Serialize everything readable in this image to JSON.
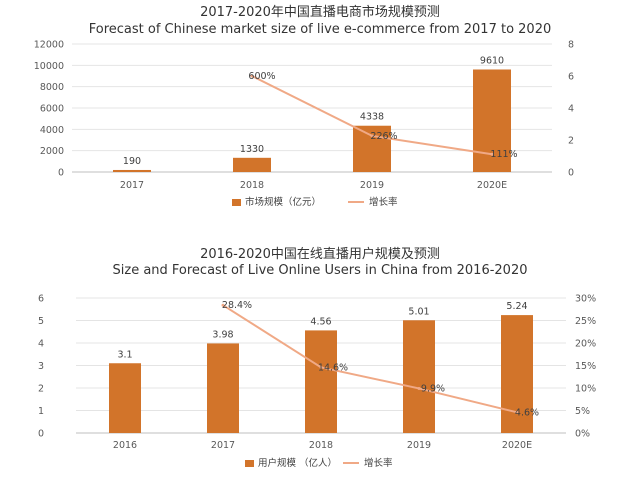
{
  "chart_data": [
    {
      "type": "bar",
      "title": "2017-2020年中国直播电商市场规模预测",
      "subtitle": "Forecast of Chinese market size of live e-commerce from 2017 to 2020",
      "categories": [
        "2017",
        "2018",
        "2019",
        "2020E"
      ],
      "left_axis": {
        "ylim": [
          0,
          12000
        ],
        "ticks": [
          "0",
          "2000",
          "4000",
          "6000",
          "8000",
          "10000",
          "12000"
        ]
      },
      "right_axis": {
        "ylim": [
          0,
          8
        ],
        "ticks": [
          "0",
          "2",
          "4",
          "6",
          "8"
        ]
      },
      "series": [
        {
          "name": "市场规模（亿元）",
          "kind": "bar",
          "axis": "left",
          "color": "#d2742a",
          "values": [
            190,
            1330,
            4338,
            9610
          ],
          "labels": [
            "190",
            "1330",
            "4338",
            "9610"
          ]
        },
        {
          "name": "增长率",
          "kind": "line",
          "axis": "right",
          "color": "#f0a986",
          "x": [
            "2018",
            "2019",
            "2020E"
          ],
          "values": [
            6.0,
            2.26,
            1.11
          ],
          "labels": [
            "600%",
            "226%",
            "111%"
          ]
        }
      ],
      "grid": true,
      "legend": "bottom"
    },
    {
      "type": "bar",
      "title": "2016-2020中国在线直播用户规模及预测",
      "subtitle": "Size and Forecast of Live Online Users in China from 2016-2020",
      "categories": [
        "2016",
        "2017",
        "2018",
        "2019",
        "2020E"
      ],
      "left_axis": {
        "ylim": [
          0,
          6
        ],
        "ticks": [
          "0",
          "1",
          "2",
          "3",
          "4",
          "5",
          "6"
        ]
      },
      "right_axis": {
        "ylim": [
          0,
          30
        ],
        "ticks": [
          "0%",
          "5%",
          "10%",
          "15%",
          "20%",
          "25%",
          "30%"
        ]
      },
      "series": [
        {
          "name": "用户规模 （亿人）",
          "kind": "bar",
          "axis": "left",
          "color": "#d2742a",
          "values": [
            3.1,
            3.98,
            4.56,
            5.01,
            5.24
          ],
          "labels": [
            "3.1",
            "3.98",
            "4.56",
            "5.01",
            "5.24"
          ]
        },
        {
          "name": "增长率",
          "kind": "line",
          "axis": "right",
          "color": "#f0a986",
          "x": [
            "2017",
            "2018",
            "2019",
            "2020E"
          ],
          "values": [
            28.4,
            14.6,
            9.9,
            4.6
          ],
          "labels": [
            "28.4%",
            "14.6%",
            "9.9%",
            "4.6%"
          ]
        }
      ],
      "grid": true,
      "legend": "bottom"
    }
  ]
}
